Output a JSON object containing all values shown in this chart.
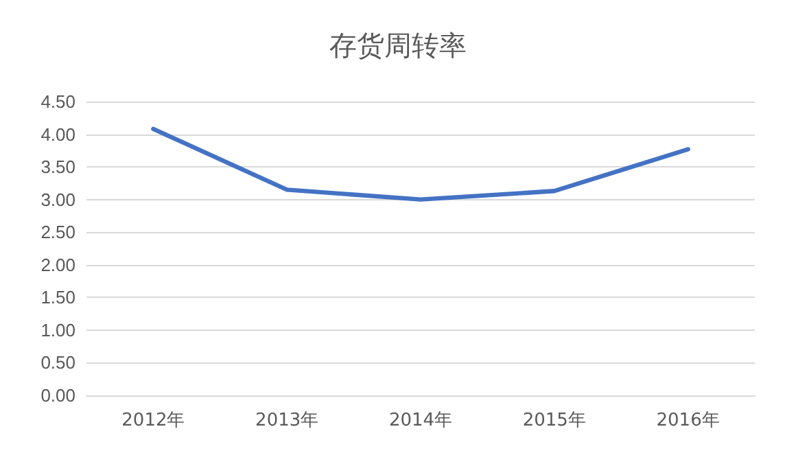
{
  "chart_data": {
    "type": "line",
    "title": "存货周转率",
    "categories": [
      "2012年",
      "2013年",
      "2014年",
      "2015年",
      "2016年"
    ],
    "series": [
      {
        "color": "#4472c4",
        "values": [
          4.08,
          3.15,
          3.0,
          3.13,
          3.77
        ]
      }
    ],
    "ylim": [
      0,
      4.5
    ],
    "yticks": [
      {
        "value": 0,
        "label": "0.00"
      },
      {
        "value": 0.5,
        "label": "0.50"
      },
      {
        "value": 1,
        "label": "1.00"
      },
      {
        "value": 1.5,
        "label": "1.50"
      },
      {
        "value": 2,
        "label": "2.00"
      },
      {
        "value": 2.5,
        "label": "2.50"
      },
      {
        "value": 3,
        "label": "3.00"
      },
      {
        "value": 3.5,
        "label": "3.50"
      },
      {
        "value": 4,
        "label": "4.00"
      },
      {
        "value": 4.5,
        "label": "4.50"
      }
    ],
    "grid": "y",
    "marker": "none",
    "line_style": "solid"
  }
}
